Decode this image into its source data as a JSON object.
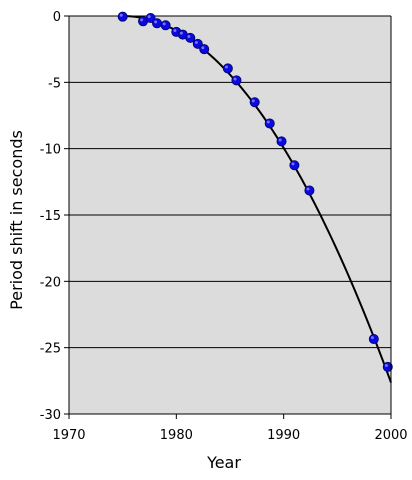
{
  "chart_data": {
    "type": "scatter",
    "title": "",
    "xlabel": "Year",
    "ylabel": "Period shift in seconds",
    "xlim": [
      1970,
      2000
    ],
    "ylim": [
      -30,
      0
    ],
    "x_ticks": [
      "1970",
      "1980",
      "1990",
      "2000"
    ],
    "y_ticks": [
      "0",
      "-5",
      "-10",
      "-15",
      "-20",
      "-25",
      "-30"
    ],
    "grid": "horizontal",
    "plot_background": "#dcdcdc",
    "series": [
      {
        "kind": "points",
        "color": "#0a0ae0",
        "x": [
          1975.0,
          1976.9,
          1977.6,
          1978.2,
          1979.0,
          1980.0,
          1980.6,
          1981.3,
          1982.0,
          1982.6,
          1984.8,
          1985.6,
          1987.3,
          1988.7,
          1989.8,
          1991.0,
          1992.4,
          1998.4,
          1999.7
        ],
        "y": [
          -0.05,
          -0.4,
          -0.15,
          -0.55,
          -0.7,
          -1.2,
          -1.4,
          -1.65,
          -2.1,
          -2.5,
          -3.95,
          -4.85,
          -6.5,
          -8.1,
          -9.45,
          -11.25,
          -13.15,
          -24.35,
          -26.45
        ]
      },
      {
        "kind": "curve",
        "color": "#000000",
        "model": "parabola",
        "vertex_x": 1975.0,
        "curvature": -0.0442,
        "x_range": [
          1975.0,
          2000
        ]
      }
    ]
  }
}
